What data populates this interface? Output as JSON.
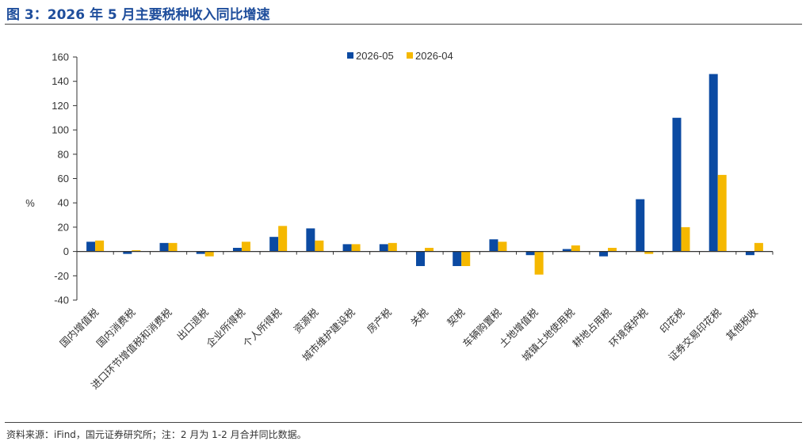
{
  "title": "图 3：2026 年 5 月主要税种收入同比增速",
  "source_note": "资料来源：iFind，国元证券研究所；注：2 月为 1-2 月合并同比数据。",
  "chart_data": {
    "type": "bar",
    "ylabel": "%",
    "ylim": [
      -40,
      160
    ],
    "yticks": [
      -40,
      -20,
      0,
      20,
      40,
      60,
      80,
      100,
      120,
      140,
      160
    ],
    "legend_position": "top-center",
    "grid": false,
    "categories": [
      "国内增值税",
      "国内消费税",
      "进口环节增值税和消费税",
      "出口退税",
      "企业所得税",
      "个人所得税",
      "资源税",
      "城市维护建设税",
      "房产税",
      "关税",
      "契税",
      "车辆购置税",
      "土地增值税",
      "城镇土地使用税",
      "耕地占用税",
      "环境保护税",
      "印花税",
      "证券交易印花税",
      "其他税收"
    ],
    "series": [
      {
        "name": "2026-05",
        "color": "#0b4aa2",
        "values": [
          8,
          -2,
          7,
          -2,
          3,
          12,
          19,
          6,
          6,
          -12,
          -12,
          10,
          -3,
          2,
          -4,
          43,
          110,
          146,
          -3
        ]
      },
      {
        "name": "2026-04",
        "color": "#f5b800",
        "values": [
          9,
          1,
          7,
          -4,
          8,
          21,
          9,
          6,
          7,
          3,
          -12,
          8,
          -19,
          5,
          3,
          -2,
          20,
          63,
          7
        ]
      }
    ]
  }
}
